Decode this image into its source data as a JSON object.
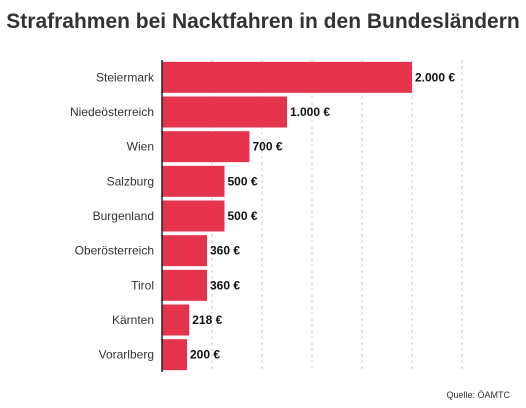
{
  "chart_data": {
    "type": "bar",
    "orientation": "horizontal",
    "title": "Strafrahmen bei Nacktfahren in den Bundesländern",
    "categories": [
      "Steiermark",
      "Niedeösterreich",
      "Wien",
      "Salzburg",
      "Burgenland",
      "Oberösterreich",
      "Tirol",
      "Kärnten",
      "Vorarlberg"
    ],
    "values": [
      2000,
      1000,
      700,
      500,
      500,
      360,
      360,
      218,
      200
    ],
    "value_labels": [
      "2.000 €",
      "1.000 €",
      "700 €",
      "500 €",
      "500 €",
      "360 €",
      "360 €",
      "218 €",
      "200 €"
    ],
    "xlim": [
      0,
      2400
    ],
    "grid": "vertical dashed",
    "bar_color": "#e5334b",
    "source": "Quelle: ÖAMTC"
  }
}
